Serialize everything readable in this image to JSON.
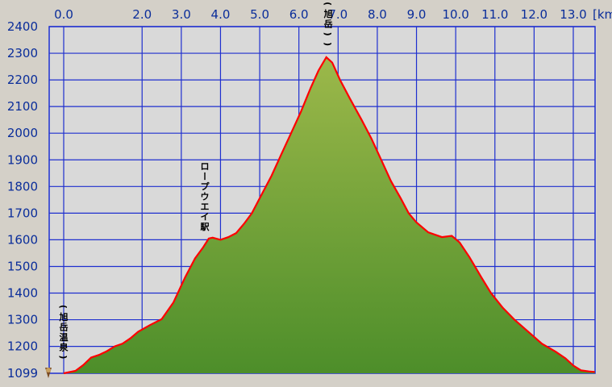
{
  "chart_data": {
    "type": "area",
    "x_unit": "km",
    "x_ticks": [
      0.0,
      2.0,
      3.0,
      4.0,
      5.0,
      6.0,
      7.0,
      8.0,
      9.0,
      10.0,
      11.0,
      12.0,
      13.0
    ],
    "x_tick_labels": [
      "0.0",
      "2.0",
      "3.0",
      "4.0",
      "5.0",
      "6.0",
      "7.0",
      "8.0",
      "9.0",
      "10.0",
      "11.0",
      "12.0",
      "13.0"
    ],
    "y_ticks": [
      1200,
      1300,
      1400,
      1500,
      1600,
      1700,
      1800,
      1900,
      2000,
      2100,
      2200,
      2300,
      2400
    ],
    "y_tick_labels": [
      "1200",
      "1300",
      "1400",
      "1500",
      "1600",
      "1700",
      "1800",
      "1900",
      "2000",
      "2100",
      "2200",
      "2300",
      "2400"
    ],
    "y_min_label": "1099",
    "ylim": [
      1099,
      2400
    ],
    "grid": true,
    "colors": {
      "plot_background": "#d9d9d9",
      "grid": "#1e2fcf",
      "profile_line": "#ff0000",
      "fill_top": "#9cb84a",
      "fill_bottom": "#4d8e2a",
      "tick_text": "#0a2d9a"
    },
    "series": [
      {
        "points": [
          [
            0.0,
            1099
          ],
          [
            0.1,
            1102
          ],
          [
            0.3,
            1108
          ],
          [
            0.5,
            1130
          ],
          [
            0.7,
            1158
          ],
          [
            0.9,
            1168
          ],
          [
            1.1,
            1182
          ],
          [
            1.3,
            1200
          ],
          [
            1.5,
            1210
          ],
          [
            1.7,
            1230
          ],
          [
            1.9,
            1255
          ],
          [
            2.2,
            1280
          ],
          [
            2.5,
            1302
          ],
          [
            2.8,
            1365
          ],
          [
            3.1,
            1460
          ],
          [
            3.35,
            1530
          ],
          [
            3.55,
            1570
          ],
          [
            3.7,
            1605
          ],
          [
            3.8,
            1608
          ],
          [
            4.0,
            1600
          ],
          [
            4.2,
            1610
          ],
          [
            4.4,
            1625
          ],
          [
            4.6,
            1660
          ],
          [
            4.8,
            1700
          ],
          [
            5.05,
            1770
          ],
          [
            5.3,
            1840
          ],
          [
            5.55,
            1920
          ],
          [
            5.8,
            2000
          ],
          [
            6.05,
            2080
          ],
          [
            6.3,
            2170
          ],
          [
            6.5,
            2235
          ],
          [
            6.7,
            2285
          ],
          [
            6.85,
            2265
          ],
          [
            7.05,
            2200
          ],
          [
            7.3,
            2130
          ],
          [
            7.6,
            2050
          ],
          [
            7.85,
            1980
          ],
          [
            8.1,
            1900
          ],
          [
            8.35,
            1820
          ],
          [
            8.6,
            1755
          ],
          [
            8.8,
            1700
          ],
          [
            9.0,
            1665
          ],
          [
            9.3,
            1628
          ],
          [
            9.65,
            1610
          ],
          [
            9.9,
            1615
          ],
          [
            10.1,
            1590
          ],
          [
            10.35,
            1535
          ],
          [
            10.65,
            1460
          ],
          [
            10.9,
            1400
          ],
          [
            11.2,
            1345
          ],
          [
            11.5,
            1300
          ],
          [
            11.85,
            1255
          ],
          [
            12.2,
            1210
          ],
          [
            12.55,
            1180
          ],
          [
            12.8,
            1155
          ],
          [
            13.0,
            1128
          ],
          [
            13.2,
            1110
          ],
          [
            13.4,
            1106
          ],
          [
            13.55,
            1104
          ]
        ]
      }
    ],
    "annotations": [
      {
        "text": "(旭岳温泉)",
        "x": 0.0,
        "y": 1140
      },
      {
        "text": "ロープウエイ駅",
        "x": 3.6,
        "y": 1630
      },
      {
        "text": "(大雪山(旭岳))",
        "x": 6.75,
        "y": 2315
      }
    ]
  }
}
